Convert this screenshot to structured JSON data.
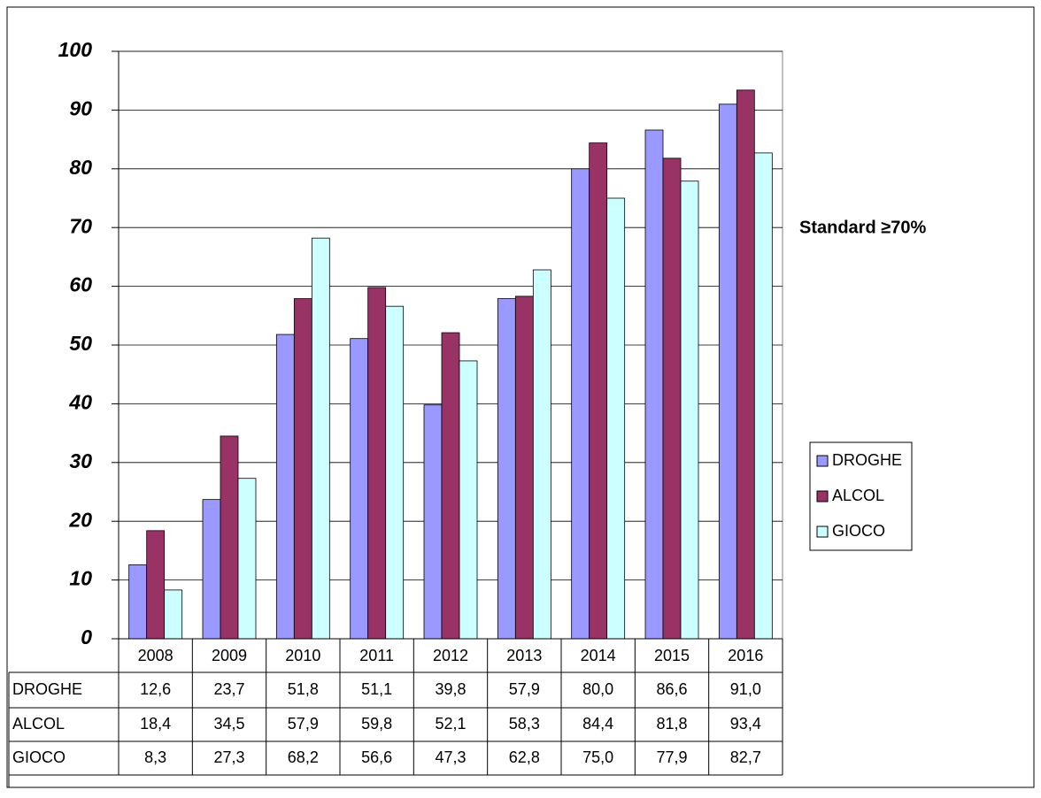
{
  "chart_data": {
    "type": "bar",
    "categories": [
      "2008",
      "2009",
      "2010",
      "2011",
      "2012",
      "2013",
      "2014",
      "2015",
      "2016"
    ],
    "series": [
      {
        "name": "DROGHE",
        "color": "#9999ff",
        "values": [
          12.6,
          23.7,
          51.8,
          51.1,
          39.8,
          57.9,
          80.0,
          86.6,
          91.0
        ],
        "value_labels": [
          "12,6",
          "23,7",
          "51,8",
          "51,1",
          "39,8",
          "57,9",
          "80,0",
          "86,6",
          "91,0"
        ]
      },
      {
        "name": "ALCOL",
        "color": "#993366",
        "values": [
          18.4,
          34.5,
          57.9,
          59.8,
          52.1,
          58.3,
          84.4,
          81.8,
          93.4
        ],
        "value_labels": [
          "18,4",
          "34,5",
          "57,9",
          "59,8",
          "52,1",
          "58,3",
          "84,4",
          "81,8",
          "93,4"
        ]
      },
      {
        "name": "GIOCO",
        "color": "#ccffff",
        "values": [
          8.3,
          27.3,
          68.2,
          56.6,
          47.3,
          62.8,
          75.0,
          77.9,
          82.7
        ],
        "value_labels": [
          "8,3",
          "27,3",
          "68,2",
          "56,6",
          "47,3",
          "62,8",
          "75,0",
          "77,9",
          "82,7"
        ]
      }
    ],
    "ylim": [
      0,
      100
    ],
    "yticks": [
      0,
      10,
      20,
      30,
      40,
      50,
      60,
      70,
      80,
      90,
      100
    ],
    "grid": true,
    "annotation": "Standard ≥70%",
    "legend": "right"
  }
}
